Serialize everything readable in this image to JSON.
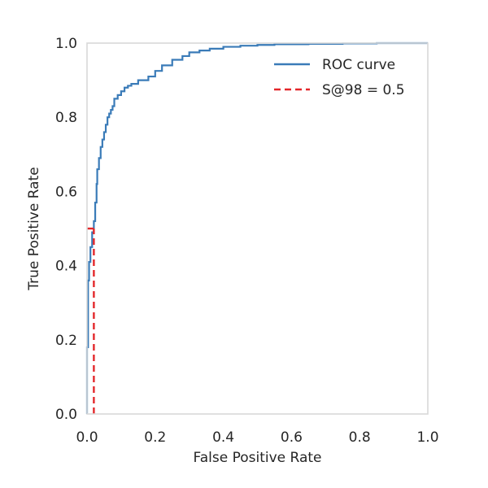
{
  "chart_data": {
    "type": "line",
    "title": "",
    "xlabel": "False Positive Rate",
    "ylabel": "True Positive Rate",
    "xlim": [
      0.0,
      1.0
    ],
    "ylim": [
      0.0,
      1.0
    ],
    "xticks": [
      "0.0",
      "0.2",
      "0.4",
      "0.6",
      "0.8",
      "1.0"
    ],
    "yticks": [
      "0.0",
      "0.2",
      "0.4",
      "0.6",
      "0.8",
      "1.0"
    ],
    "grid": false,
    "legend_position": "top-right",
    "series": [
      {
        "name": "ROC curve",
        "color": "#3a7bb8",
        "style": "solid",
        "x": [
          0.0,
          0.0,
          0.003,
          0.003,
          0.006,
          0.006,
          0.01,
          0.01,
          0.015,
          0.015,
          0.02,
          0.02,
          0.024,
          0.024,
          0.028,
          0.028,
          0.03,
          0.03,
          0.035,
          0.035,
          0.04,
          0.04,
          0.045,
          0.045,
          0.05,
          0.05,
          0.055,
          0.055,
          0.06,
          0.06,
          0.065,
          0.065,
          0.07,
          0.07,
          0.075,
          0.075,
          0.08,
          0.08,
          0.09,
          0.09,
          0.1,
          0.1,
          0.11,
          0.11,
          0.12,
          0.12,
          0.13,
          0.13,
          0.15,
          0.15,
          0.18,
          0.18,
          0.2,
          0.2,
          0.22,
          0.22,
          0.25,
          0.25,
          0.28,
          0.28,
          0.3,
          0.3,
          0.33,
          0.33,
          0.36,
          0.36,
          0.4,
          0.4,
          0.45,
          0.45,
          0.5,
          0.5,
          0.55,
          0.55,
          0.65,
          0.65,
          0.75,
          0.75,
          0.85,
          0.85,
          1.0
        ],
        "y": [
          0.0,
          0.18,
          0.18,
          0.36,
          0.36,
          0.41,
          0.41,
          0.45,
          0.45,
          0.49,
          0.49,
          0.52,
          0.52,
          0.57,
          0.57,
          0.62,
          0.62,
          0.66,
          0.66,
          0.69,
          0.69,
          0.72,
          0.72,
          0.74,
          0.74,
          0.76,
          0.76,
          0.78,
          0.78,
          0.8,
          0.8,
          0.81,
          0.81,
          0.82,
          0.82,
          0.83,
          0.83,
          0.85,
          0.85,
          0.86,
          0.86,
          0.87,
          0.87,
          0.88,
          0.88,
          0.885,
          0.885,
          0.89,
          0.89,
          0.9,
          0.9,
          0.91,
          0.91,
          0.925,
          0.925,
          0.94,
          0.94,
          0.955,
          0.955,
          0.965,
          0.965,
          0.975,
          0.975,
          0.98,
          0.98,
          0.985,
          0.985,
          0.99,
          0.99,
          0.993,
          0.993,
          0.995,
          0.995,
          0.997,
          0.997,
          0.998,
          0.998,
          0.999,
          0.999,
          1.0,
          1.0
        ]
      },
      {
        "name": "S@98 = 0.5",
        "color": "#e3272a",
        "style": "dashed",
        "segments": [
          {
            "x": [
              0.02,
              0.02
            ],
            "y": [
              0.0,
              0.5
            ]
          },
          {
            "x": [
              0.0,
              0.02
            ],
            "y": [
              0.5,
              0.5
            ]
          }
        ]
      }
    ]
  }
}
